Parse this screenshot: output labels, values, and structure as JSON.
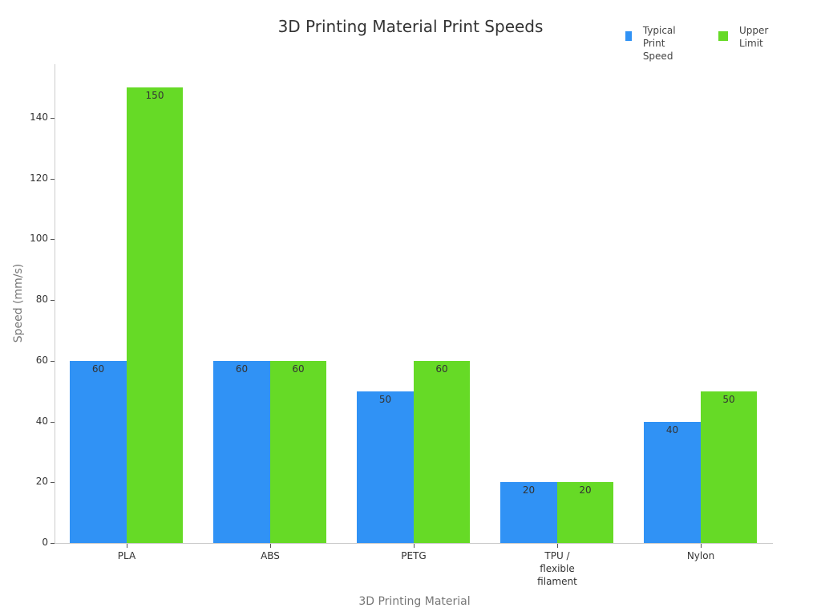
{
  "chart_data": {
    "type": "bar",
    "title": "3D Printing Material Print Speeds",
    "xlabel": "3D Printing Material",
    "ylabel": "Speed (mm/s)",
    "categories": [
      "PLA",
      "ABS",
      "PETG",
      "TPU /\nflexible\nfilament",
      "Nylon"
    ],
    "series": [
      {
        "name": "Typical\nPrint Speed",
        "color": "#3092f5",
        "values": [
          60,
          60,
          50,
          20,
          40
        ]
      },
      {
        "name": "Upper\nLimit",
        "color": "#66da26",
        "values": [
          150,
          60,
          60,
          20,
          50
        ]
      }
    ],
    "yticks": [
      0,
      20,
      40,
      60,
      80,
      100,
      120,
      140
    ],
    "ylim": [
      0,
      157
    ],
    "grid": false,
    "legend_position": "top-right",
    "data_labels": true
  }
}
